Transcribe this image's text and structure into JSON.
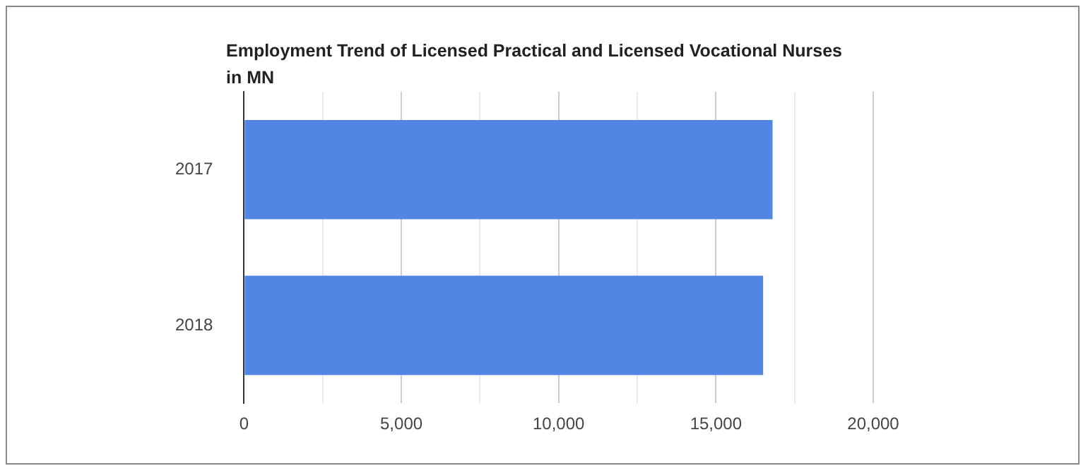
{
  "chart_data": {
    "type": "bar",
    "orientation": "horizontal",
    "title": "Employment Trend of Licensed Practical and Licensed Vocational Nurses in MN",
    "categories": [
      "2017",
      "2018"
    ],
    "values": [
      16800,
      16500
    ],
    "color": "#5286e2",
    "xlim": [
      0,
      20000
    ],
    "xticks": [
      0,
      {
        "value": 2500,
        "label": null
      },
      {
        "value": 5000,
        "label": "5,000"
      },
      {
        "value": 7500,
        "label": null
      },
      {
        "value": 10000,
        "label": "10,000"
      },
      {
        "value": 12500,
        "label": null
      },
      {
        "value": 15000,
        "label": "15,000"
      },
      {
        "value": 17500,
        "label": null
      },
      {
        "value": 20000,
        "label": "20,000"
      }
    ],
    "grid": "x",
    "legend": false
  }
}
